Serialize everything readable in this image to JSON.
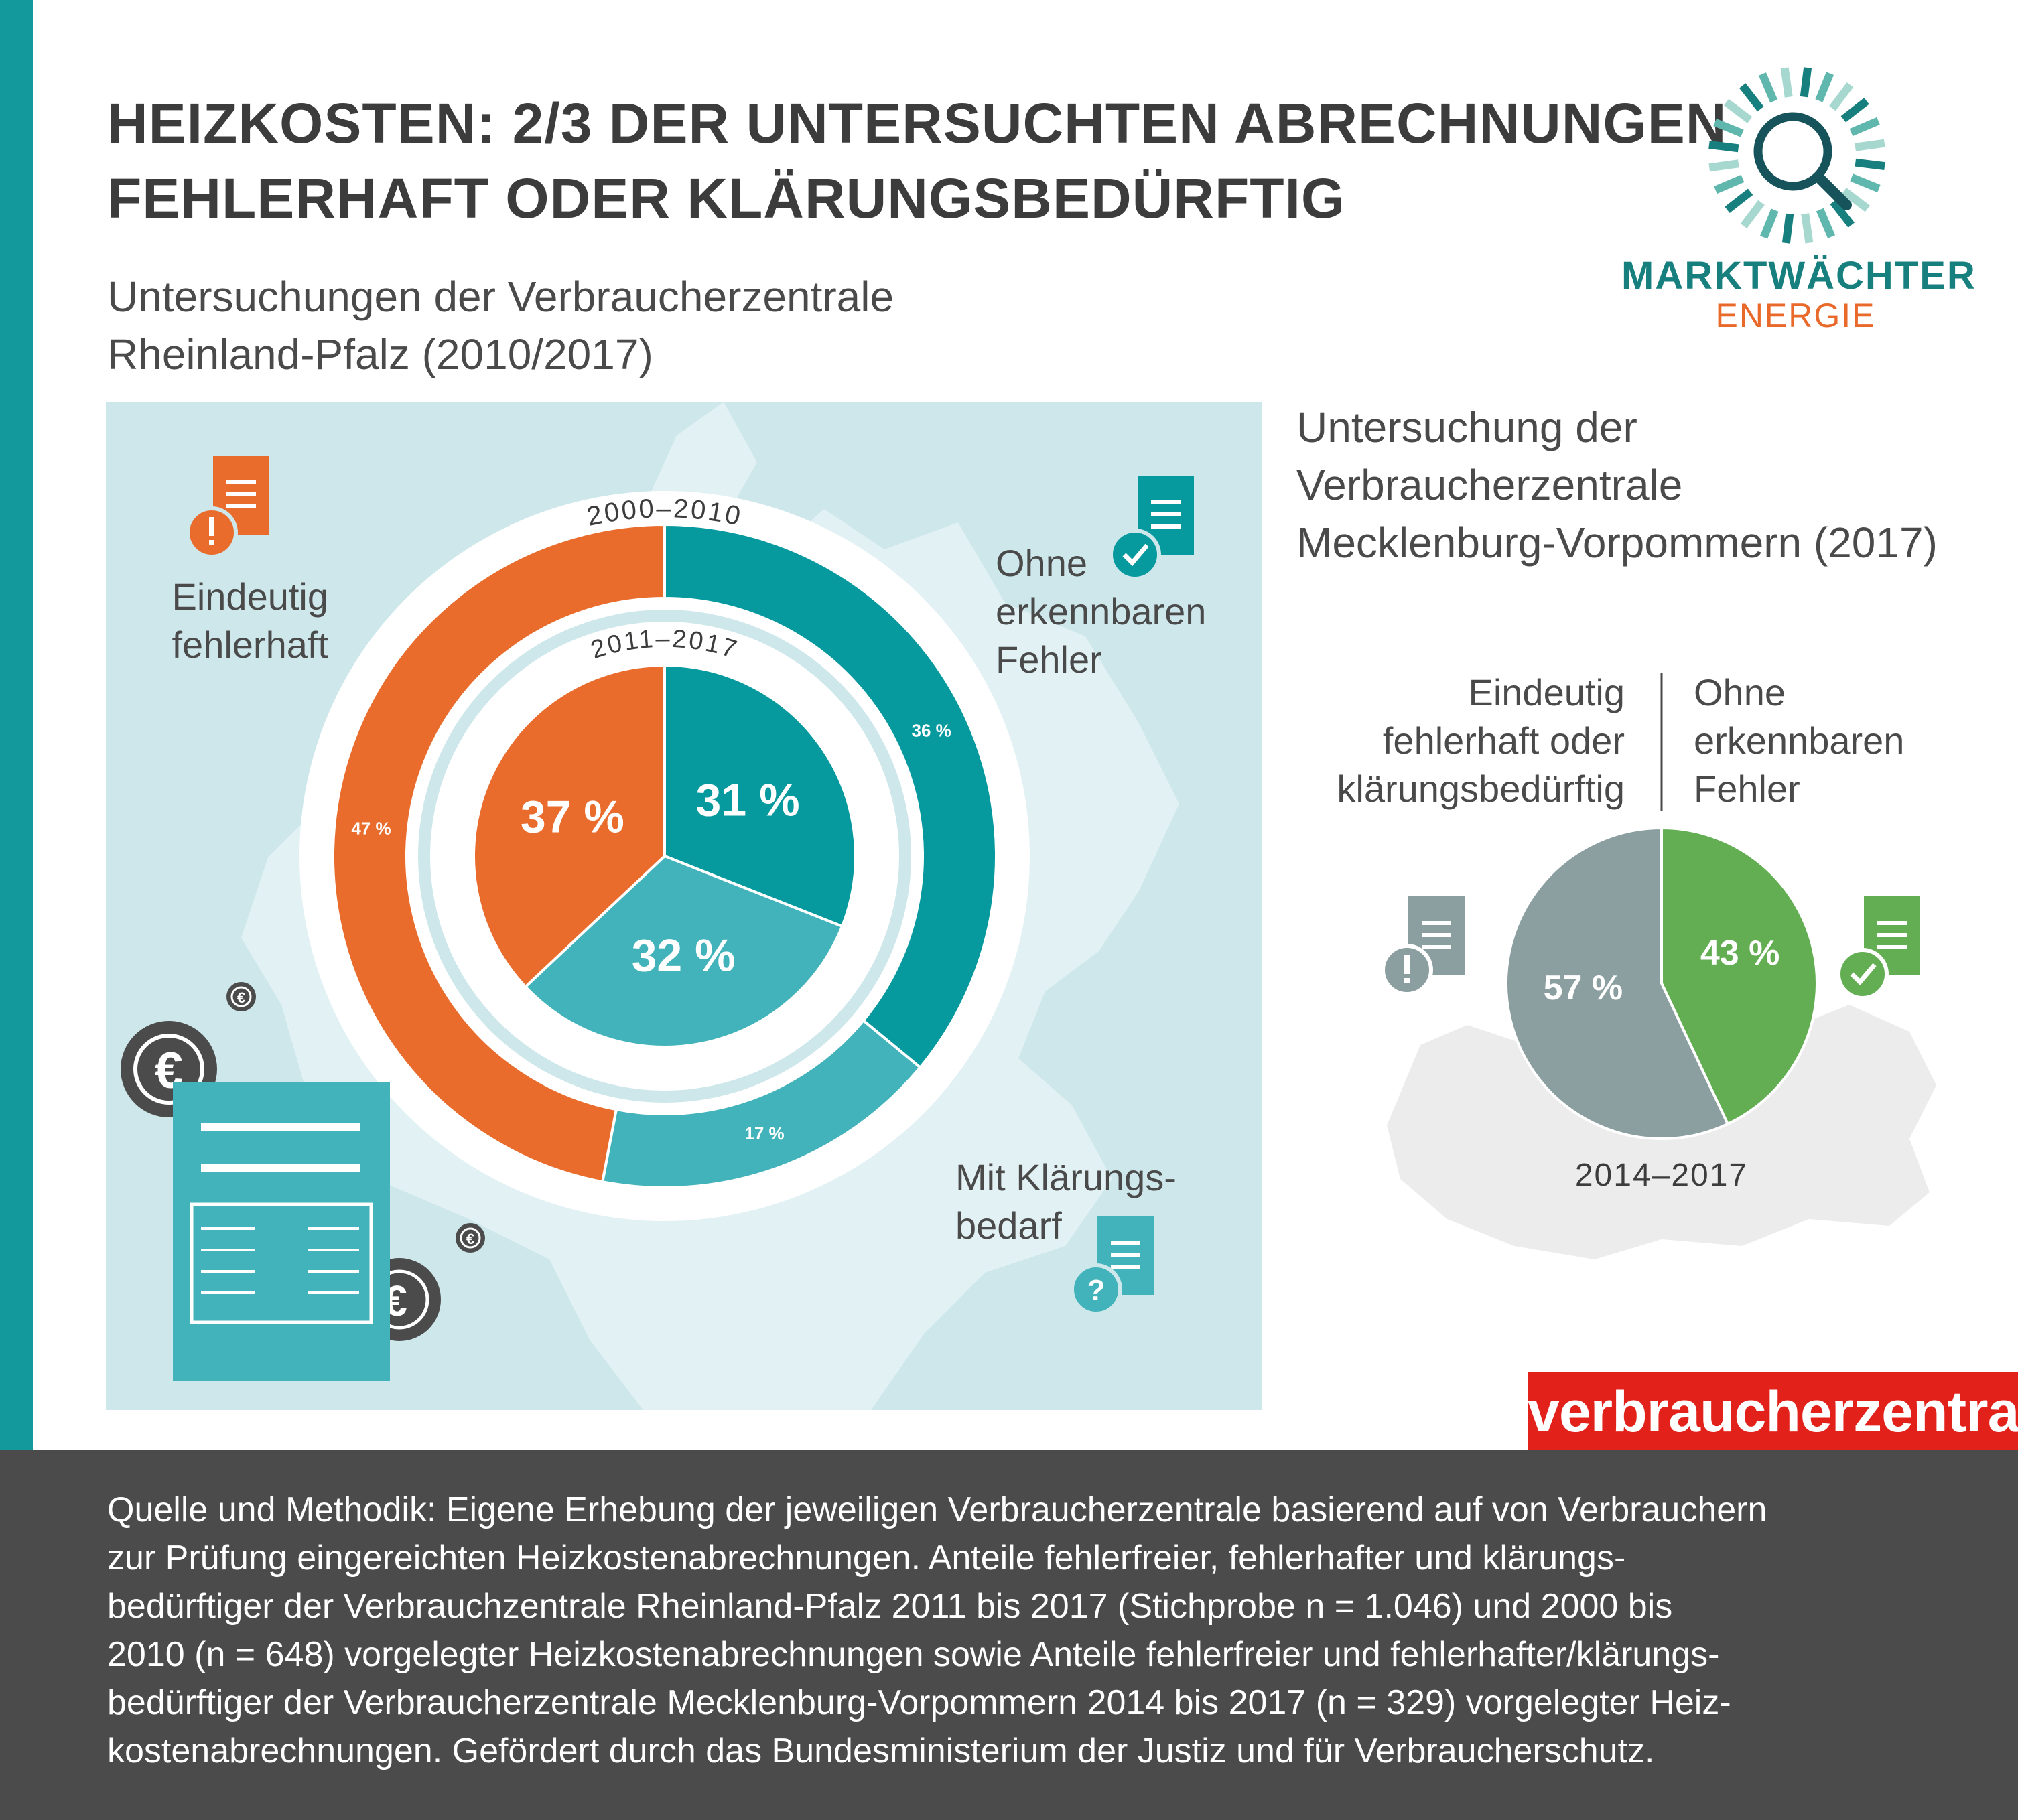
{
  "header": {
    "title_line1": "HEIZKOSTEN: 2/3 DER UNTERSUCHTEN ABRECHNUNGEN",
    "title_line2": "FEHLERHAFT ODER KLÄRUNGSBEDÜRFTIG",
    "subtitle_left_line1": "Untersuchungen der Verbraucherzentrale",
    "subtitle_left_line2": "Rheinland-Pfalz (2010/2017)",
    "subtitle_right_line1": "Untersuchung der",
    "subtitle_right_line2": "Verbraucherzentrale",
    "subtitle_right_line3": "Mecklenburg-Vorpommern (2017)"
  },
  "logo": {
    "name_line1": "MARKTWÄCHTER",
    "name_line2": "ENERGIE",
    "icon": "magnifier-sunburst-icon"
  },
  "labels": {
    "eindeutig_1": "Eindeutig",
    "eindeutig_2": "fehlerhaft",
    "ohne_1": "Ohne",
    "ohne_2": "erkennbaren",
    "ohne_3": "Fehler",
    "klaerung_1": "Mit Klärungs-",
    "klaerung_2": "bedarf",
    "mv_left_1": "Eindeutig",
    "mv_left_2": "fehlerhaft oder",
    "mv_left_3": "klärungsbedürftig",
    "mv_right_1": "Ohne",
    "mv_right_2": "erkennbaren",
    "mv_right_3": "Fehler"
  },
  "colors": {
    "orange": "#e96c2c",
    "teal_dark": "#06999e",
    "teal_light": "#42b3ba",
    "grey": "#8b9ea0",
    "green": "#63ae53",
    "accent": "#13999c",
    "map_bg": "#cde7eb",
    "map_light": "#e2f1f4"
  },
  "chart_data": [
    {
      "type": "pie",
      "variant": "donut-outer-ring",
      "title": "2000–2010",
      "categories": [
        "Eindeutig fehlerhaft",
        "Ohne erkennbaren Fehler",
        "Mit Klärungsbedarf"
      ],
      "values": [
        47,
        36,
        17
      ],
      "value_labels": [
        "47 %",
        "36 %",
        "17 %"
      ],
      "colors": [
        "#e96c2c",
        "#06999e",
        "#42b3ba"
      ]
    },
    {
      "type": "pie",
      "variant": "inner-pie",
      "title": "2011–2017",
      "categories": [
        "Eindeutig fehlerhaft",
        "Ohne erkennbaren Fehler",
        "Mit Klärungsbedarf"
      ],
      "values": [
        37,
        31,
        32
      ],
      "value_labels": [
        "37 %",
        "31 %",
        "32 %"
      ],
      "colors": [
        "#e96c2c",
        "#06999e",
        "#42b3ba"
      ]
    },
    {
      "type": "pie",
      "title": "2014–2017",
      "categories": [
        "Eindeutig fehlerhaft oder klärungsbedürftig",
        "Ohne erkennbaren Fehler"
      ],
      "values": [
        57,
        43
      ],
      "value_labels": [
        "57 %",
        "43 %"
      ],
      "colors": [
        "#8b9ea0",
        "#63ae53"
      ]
    }
  ],
  "brand": {
    "name": "verbraucherzentrale"
  },
  "footer": {
    "line1": "Quelle und Methodik: Eigene Erhebung der jeweiligen Verbraucherzentrale basierend auf von Verbrauchern",
    "line2": "zur Prüfung eingereichten Heizkostenabrechnungen. Anteile fehlerfreier, fehlerhafter und klärungs-",
    "line3": "bedürftiger der Verbrauchzentrale Rheinland-Pfalz 2011 bis 2017 (Stichprobe n = 1.046) und 2000 bis",
    "line4": "2010 (n = 648) vorgelegter Heizkostenabrechnungen sowie Anteile fehlerfreier und fehlerhafter/klärungs-",
    "line5": "bedürftiger der Verbraucherzentrale Mecklenburg-Vorpommern 2014 bis 2017 (n = 329) vorgelegter Heiz-",
    "line6": "kostenabrechnungen. Gefördert durch das Bundesministerium der Justiz und für Verbraucherschutz."
  },
  "icons": {
    "doc_error": "document-exclamation-icon",
    "doc_ok": "document-check-icon",
    "doc_question": "document-question-icon",
    "coin": "euro-coin-icon",
    "invoice": "invoice-icon"
  }
}
